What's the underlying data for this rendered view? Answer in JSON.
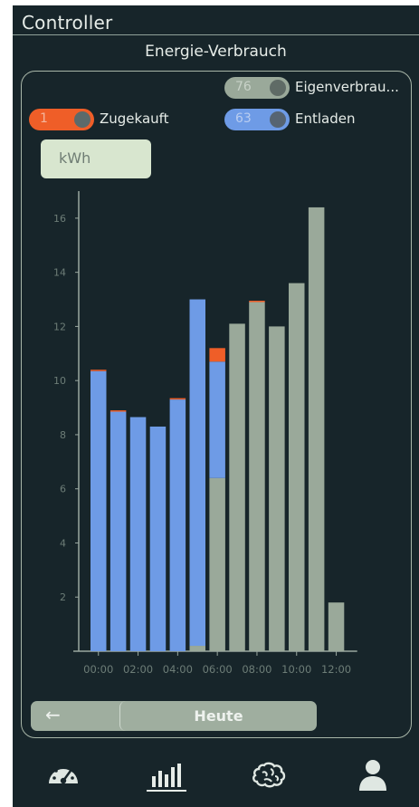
{
  "header": {
    "title": "Controller"
  },
  "section_title": "Energie-Verbrauch",
  "legend": [
    {
      "id": "eigen",
      "value": "76",
      "label": "Eigenverbrau...",
      "color": "#9aa99a"
    },
    {
      "id": "zugekauft",
      "value": "1",
      "label": "Zugekauft",
      "color": "#ef5e28"
    },
    {
      "id": "entladen",
      "value": "63",
      "label": "Entladen",
      "color": "#6e9be6"
    }
  ],
  "unit": "kWh",
  "chart_data": {
    "type": "bar",
    "stacked": true,
    "y_ticks": [
      "2",
      "4",
      "6",
      "8",
      "10",
      "12",
      "14",
      "16"
    ],
    "ylim": [
      0,
      17
    ],
    "x_tick_labels": [
      "00:00",
      "02:00",
      "04:00",
      "06:00",
      "08:00",
      "10:00",
      "12:00"
    ],
    "series": [
      {
        "name": "Eigenverbrau...",
        "color": "#9aa99a",
        "values": [
          0,
          0,
          0,
          0,
          0,
          0.2,
          6.4,
          12.1,
          12.9,
          12.0,
          13.6,
          16.4,
          1.8
        ]
      },
      {
        "name": "Entladen",
        "color": "#6e9be6",
        "values": [
          10.35,
          8.85,
          8.65,
          8.3,
          9.3,
          12.8,
          4.3,
          0,
          0,
          0,
          0,
          0,
          0
        ]
      },
      {
        "name": "Zugekauft",
        "color": "#ef5e28",
        "values": [
          0.05,
          0.05,
          0,
          0,
          0.05,
          0,
          0.5,
          0,
          0.05,
          0,
          0,
          0,
          0
        ]
      }
    ]
  },
  "nav": {
    "back_icon": "←",
    "today_label": "Heute"
  },
  "tabs": [
    {
      "id": "dashboard",
      "icon": "gauge-icon"
    },
    {
      "id": "stats",
      "icon": "bar-chart-icon",
      "active": true
    },
    {
      "id": "ai",
      "icon": "brain-icon"
    },
    {
      "id": "profile",
      "icon": "user-icon"
    }
  ]
}
